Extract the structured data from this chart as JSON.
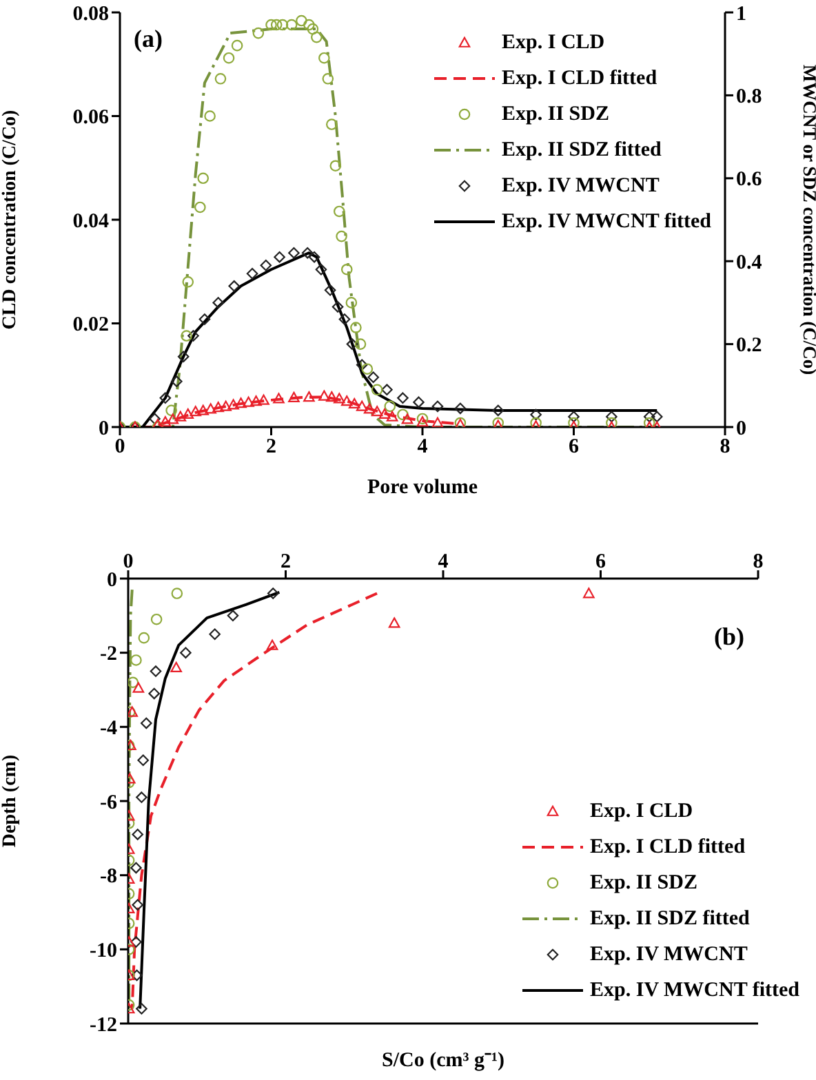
{
  "chart_data": [
    {
      "type": "scatter",
      "annotations": [
        "(a)"
      ],
      "xlabel": "Pore volume",
      "ylabel": "CLD concentration (C/Co)",
      "y2label": "MWCNT or SDZ concentration (C/Co)",
      "xlim": [
        0,
        8
      ],
      "xticks": [
        0,
        2,
        4,
        6,
        8
      ],
      "ylim": [
        0,
        0.08
      ],
      "yticks": [
        0,
        0.02,
        0.04,
        0.06,
        0.08
      ],
      "y2lim": [
        0,
        1
      ],
      "y2ticks": [
        0,
        0.2,
        0.4,
        0.6,
        0.8,
        1
      ],
      "legend": "top right",
      "grid": false,
      "series": [
        {
          "name": "Exp. I CLD",
          "marker": "triangle",
          "color": "#e8202a",
          "x": [
            0,
            0.2,
            0.5,
            0.6,
            0.7,
            0.8,
            0.9,
            1.0,
            1.1,
            1.2,
            1.3,
            1.4,
            1.5,
            1.6,
            1.7,
            1.8,
            1.9,
            2.1,
            2.3,
            2.5,
            2.7,
            2.8,
            2.9,
            3.0,
            3.1,
            3.2,
            3.3,
            3.4,
            3.5,
            3.6,
            3.8,
            4.0,
            4.2,
            4.5,
            5.0,
            5.5,
            6.0,
            6.5,
            7.0,
            7.1
          ],
          "values": [
            0,
            0,
            0.0005,
            0.001,
            0.0015,
            0.002,
            0.0025,
            0.003,
            0.0032,
            0.0035,
            0.0038,
            0.004,
            0.0043,
            0.0046,
            0.0048,
            0.005,
            0.0052,
            0.0055,
            0.0057,
            0.0058,
            0.006,
            0.0058,
            0.0055,
            0.005,
            0.0045,
            0.004,
            0.0035,
            0.003,
            0.0025,
            0.002,
            0.0015,
            0.001,
            0.0008,
            0.0005,
            0.0003,
            0.0002,
            0.0001,
            0,
            0,
            0
          ]
        },
        {
          "name": "Exp. I CLD fitted",
          "type": "line",
          "line_style": "dashed",
          "marker": "none",
          "color": "#e8202a",
          "x": [
            0,
            0.4,
            0.6,
            0.8,
            1.0,
            1.3,
            1.6,
            2.0,
            2.4,
            2.7,
            3.0,
            3.3,
            3.6,
            4.0,
            4.5
          ],
          "values": [
            0,
            0,
            0.0008,
            0.0018,
            0.0028,
            0.0037,
            0.0045,
            0.0052,
            0.0057,
            0.0058,
            0.005,
            0.0035,
            0.0022,
            0.0012,
            0.0006
          ]
        },
        {
          "name": "Exp. II SDZ",
          "axis": "y2",
          "marker": "circle",
          "color": "#8faa3c",
          "x": [
            0,
            0.2,
            0.5,
            0.68,
            0.88,
            0.9,
            1.06,
            1.1,
            1.19,
            1.33,
            1.44,
            1.55,
            1.83,
            2.0,
            2.07,
            2.15,
            2.27,
            2.4,
            2.5,
            2.55,
            2.6,
            2.7,
            2.75,
            2.8,
            2.85,
            2.9,
            2.93,
            3.0,
            3.06,
            3.12,
            3.18,
            3.27,
            3.4,
            3.57,
            3.74,
            4.0,
            4.5,
            5.0,
            5.5,
            6.0,
            6.5,
            7.0
          ],
          "values": [
            0,
            0,
            0,
            0.04,
            0.22,
            0.35,
            0.53,
            0.6,
            0.75,
            0.84,
            0.89,
            0.92,
            0.95,
            0.97,
            0.97,
            0.97,
            0.97,
            0.98,
            0.97,
            0.96,
            0.94,
            0.89,
            0.84,
            0.73,
            0.63,
            0.52,
            0.46,
            0.38,
            0.3,
            0.24,
            0.2,
            0.14,
            0.09,
            0.05,
            0.03,
            0.02,
            0.01,
            0.01,
            0.01,
            0.01,
            0.01,
            0.01
          ]
        },
        {
          "name": "Exp. II SDZ fitted",
          "type": "line",
          "axis": "y2",
          "line_style": "dashdot",
          "marker": "none",
          "color": "#77933c",
          "x": [
            0,
            0.7,
            0.79,
            1.0,
            1.12,
            1.46,
            2.0,
            2.6,
            2.73,
            2.85,
            2.94,
            3.03,
            3.19,
            3.34,
            3.5,
            4.0,
            7.1
          ],
          "values": [
            0,
            0,
            0.14,
            0.61,
            0.83,
            0.95,
            0.96,
            0.96,
            0.93,
            0.75,
            0.56,
            0.36,
            0.14,
            0.03,
            0.005,
            0,
            0
          ]
        },
        {
          "name": "Exp. IV MWCNT",
          "axis": "y2",
          "marker": "diamond",
          "color": "#222222",
          "x": [
            0,
            0.2,
            0.46,
            0.6,
            0.75,
            0.84,
            0.97,
            1.12,
            1.3,
            1.51,
            1.75,
            1.93,
            2.11,
            2.3,
            2.48,
            2.57,
            2.66,
            2.78,
            2.88,
            2.97,
            3.07,
            3.2,
            3.35,
            3.53,
            3.74,
            3.95,
            4.2,
            4.5,
            5.0,
            5.5,
            6.0,
            6.5,
            7.0,
            7.1
          ],
          "values": [
            0,
            0,
            0.02,
            0.07,
            0.11,
            0.17,
            0.22,
            0.26,
            0.3,
            0.34,
            0.37,
            0.39,
            0.41,
            0.42,
            0.42,
            0.41,
            0.38,
            0.33,
            0.29,
            0.26,
            0.2,
            0.15,
            0.12,
            0.09,
            0.07,
            0.06,
            0.05,
            0.045,
            0.04,
            0.03,
            0.025,
            0.025,
            0.025,
            0.025
          ]
        },
        {
          "name": "Exp. IV MWCNT fitted",
          "type": "line",
          "axis": "y2",
          "line_style": "solid",
          "marker": "none",
          "color": "#000000",
          "x": [
            0,
            0.3,
            0.6,
            0.84,
            1.0,
            1.3,
            1.6,
            2.0,
            2.5,
            2.6,
            2.8,
            3.0,
            3.2,
            3.4,
            3.7,
            4.0,
            5.0,
            7.1
          ],
          "values": [
            0,
            0,
            0.07,
            0.17,
            0.23,
            0.29,
            0.34,
            0.38,
            0.42,
            0.41,
            0.33,
            0.24,
            0.13,
            0.08,
            0.05,
            0.045,
            0.04,
            0.04
          ]
        }
      ]
    },
    {
      "type": "scatter",
      "annotations": [
        "(b)"
      ],
      "xlabel": "S/Co (cm³ g⁻¹)",
      "ylabel": "Depth (cm)",
      "xlim": [
        0,
        8
      ],
      "xticks": [
        0,
        2,
        4,
        6,
        8
      ],
      "ylim": [
        -12,
        0
      ],
      "yticks": [
        0,
        -2,
        -4,
        -6,
        -8,
        -10,
        -12
      ],
      "legend": "bottom right",
      "grid": false,
      "series": [
        {
          "name": "Exp. I CLD",
          "marker": "triangle",
          "color": "#e8202a",
          "x": [
            5.85,
            3.38,
            1.83,
            0.61,
            0.13,
            0.05,
            0.03,
            0.02,
            0.01,
            0.01,
            0.01,
            0.01,
            0.01,
            0.01,
            0.01
          ],
          "values": [
            -0.4,
            -1.2,
            -1.8,
            -2.4,
            -2.95,
            -3.6,
            -4.5,
            -5.4,
            -6.4,
            -7.3,
            -8.1,
            -8.9,
            -9.8,
            -10.7,
            -11.6
          ]
        },
        {
          "name": "Exp. I CLD fitted",
          "type": "line",
          "line_style": "dashed",
          "marker": "none",
          "color": "#e8202a",
          "x": [
            3.16,
            2.27,
            1.7,
            1.22,
            0.9,
            0.64,
            0.41,
            0.29,
            0.17,
            0.08,
            0.05
          ],
          "values": [
            -0.4,
            -1.25,
            -2.05,
            -2.75,
            -3.55,
            -4.55,
            -5.7,
            -6.4,
            -8.0,
            -10.0,
            -11.6
          ]
        },
        {
          "name": "Exp. II SDZ",
          "marker": "circle",
          "color": "#8faa3c",
          "x": [
            0.62,
            0.36,
            0.2,
            0.1,
            0.06,
            0.02,
            0.01,
            0.01,
            0.01,
            0.01,
            0.01,
            0.01,
            0.01,
            0.01,
            0.01
          ],
          "values": [
            -0.4,
            -1.1,
            -1.6,
            -2.2,
            -2.8,
            -3.6,
            -4.5,
            -5.5,
            -6.6,
            -7.6,
            -8.5,
            -9.3,
            -10.0,
            -10.7,
            -11.5
          ]
        },
        {
          "name": "Exp. II SDZ fitted",
          "type": "line",
          "line_style": "dashdot",
          "marker": "none",
          "color": "#77933c",
          "x": [
            0.05,
            0.03,
            0.02,
            0.01,
            0.01
          ],
          "values": [
            -0.3,
            -1.0,
            -3.0,
            -6.0,
            -11.6
          ]
        },
        {
          "name": "Exp. IV MWCNT",
          "marker": "diamond",
          "color": "#222222",
          "x": [
            1.84,
            1.33,
            1.1,
            0.73,
            0.35,
            0.33,
            0.23,
            0.19,
            0.17,
            0.12,
            0.1,
            0.12,
            0.1,
            0.11,
            0.17
          ],
          "values": [
            -0.4,
            -1.0,
            -1.5,
            -2.0,
            -2.5,
            -3.1,
            -3.9,
            -4.9,
            -5.9,
            -6.9,
            -7.8,
            -8.8,
            -9.8,
            -10.7,
            -11.6
          ]
        },
        {
          "name": "Exp. IV MWCNT fitted",
          "type": "line",
          "line_style": "solid",
          "marker": "none",
          "color": "#000000",
          "x": [
            1.92,
            1.5,
            1.0,
            0.64,
            0.47,
            0.35,
            0.26,
            0.2,
            0.15
          ],
          "values": [
            -0.37,
            -0.7,
            -1.06,
            -1.8,
            -2.7,
            -3.8,
            -6.0,
            -9.0,
            -11.6
          ]
        }
      ]
    }
  ]
}
